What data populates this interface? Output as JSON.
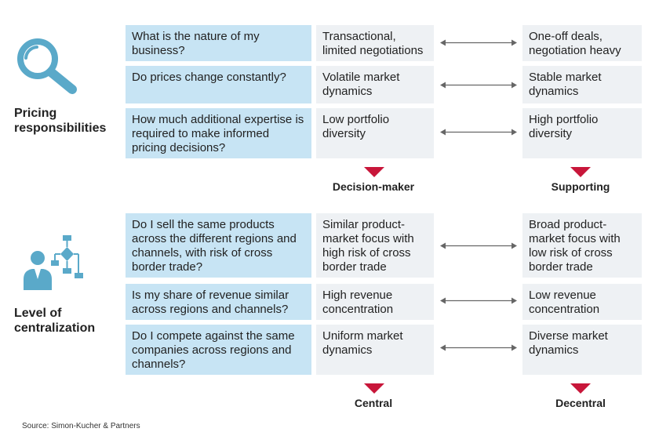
{
  "colors": {
    "question_bg": "#c7e4f4",
    "option_bg": "#eef1f4",
    "accent_red": "#c8163a",
    "icon_blue": "#5aa9c9"
  },
  "sections": [
    {
      "label": "Pricing responsibilities",
      "label_lines": [
        "Pricing",
        "responsibilities"
      ],
      "icon": "magnifying-glass-icon",
      "rows": [
        {
          "question": "What is the nature of my business?",
          "left": "Transactional, limited negotiations",
          "right": "One-off deals, negotiation heavy"
        },
        {
          "question": "Do prices change constantly?",
          "left": "Volatile market dynamics",
          "right": "Stable market dynamics"
        },
        {
          "question": "How much additional expertise is required to make informed pricing decisions?",
          "left": "Low portfolio diversity",
          "right": "High portfolio diversity"
        }
      ],
      "left_pole": "Decision-maker",
      "right_pole": "Supporting"
    },
    {
      "label": "Level of centralization",
      "label_lines": [
        "Level of",
        "centralization"
      ],
      "icon": "person-flowchart-icon",
      "rows": [
        {
          "question": "Do I sell the same products across the different regions and channels, with risk of cross border trade?",
          "left": "Similar product-market focus with high risk of cross border trade",
          "right": "Broad product-market focus with low risk of cross border trade"
        },
        {
          "question": "Is my share of revenue similar across regions and channels?",
          "left": "High revenue concentration",
          "right": "Low revenue concentration"
        },
        {
          "question": "Do I compete against the same companies across regions and channels?",
          "left": "Uniform market dynamics",
          "right": "Diverse market dynamics"
        }
      ],
      "left_pole": "Central",
      "right_pole": "Decentral"
    }
  ],
  "source": "Source: Simon-Kucher & Partners"
}
